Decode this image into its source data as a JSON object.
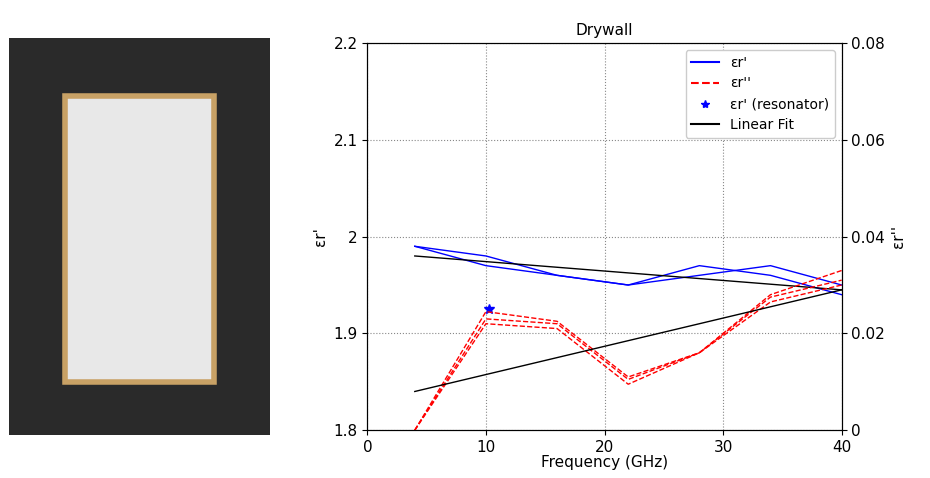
{
  "chart_data": {
    "type": "line",
    "title": "Drywall",
    "xlabel": "Frequency (GHz)",
    "ylabel": "εr'",
    "y2label": "εr''",
    "xlim": [
      0,
      40
    ],
    "xticks": [
      0,
      10,
      20,
      30,
      40
    ],
    "ylim": [
      1.8,
      2.2
    ],
    "yticks": [
      1.8,
      1.9,
      {
        "value": 2,
        "label": "2"
      },
      2.1,
      2.2
    ],
    "y2lim": [
      0,
      0.08
    ],
    "y2ticks": [
      0,
      0.02,
      0.04,
      0.06,
      0.08
    ],
    "grid": true,
    "legend": "upper right",
    "series": [
      {
        "name": "εr'",
        "color": "#0000ff",
        "line_style": "solid",
        "marker": "none",
        "x": [
          4,
          10,
          16,
          22,
          28,
          34,
          40
        ],
        "values": [
          1.99,
          1.98,
          1.96,
          1.95,
          1.97,
          1.96,
          1.94
        ]
      },
      {
        "name": "εr'",
        "color": "#0000ff",
        "line_style": "solid",
        "marker": "none",
        "x": [
          4,
          10,
          16,
          22,
          28,
          34,
          40
        ],
        "values": [
          1.99,
          1.97,
          1.96,
          1.95,
          1.96,
          1.97,
          1.95
        ]
      },
      {
        "name": "εr''",
        "color": "#ff0000",
        "line_style": "dashed",
        "marker": "none",
        "axis": "y2",
        "x": [
          4,
          10,
          16,
          22,
          28,
          34,
          40
        ],
        "values": [
          0,
          0.0245,
          0.0225,
          0.011,
          0.016,
          0.028,
          0.033
        ]
      },
      {
        "name": "εr''",
        "color": "#ff0000",
        "line_style": "dashed",
        "marker": "none",
        "axis": "y2",
        "x": [
          4,
          10,
          16,
          22,
          28,
          34,
          40
        ],
        "values": [
          0,
          0.023,
          0.022,
          0.0105,
          0.016,
          0.0275,
          0.031
        ]
      },
      {
        "name": "εr''",
        "color": "#ff0000",
        "line_style": "dashed",
        "marker": "none",
        "axis": "y2",
        "x": [
          4,
          10,
          16,
          22,
          28,
          34,
          40
        ],
        "values": [
          0,
          0.022,
          0.021,
          0.0095,
          0.016,
          0.0265,
          0.03
        ]
      },
      {
        "name": "εr' (resonator)",
        "type": "scatter",
        "color": "#0000ff",
        "marker": "*",
        "line_style": "none",
        "x": [
          10.3
        ],
        "values": [
          1.925
        ]
      },
      {
        "name": "Linear Fit",
        "color": "#000000",
        "line_style": "solid",
        "marker": "none",
        "x": [
          4,
          40
        ],
        "values": [
          1.98,
          1.945
        ]
      },
      {
        "name": "Linear Fit",
        "color": "#000000",
        "line_style": "solid",
        "marker": "none",
        "axis": "y2",
        "x": [
          4,
          40
        ],
        "values": [
          0.008,
          0.029
        ]
      }
    ]
  }
}
